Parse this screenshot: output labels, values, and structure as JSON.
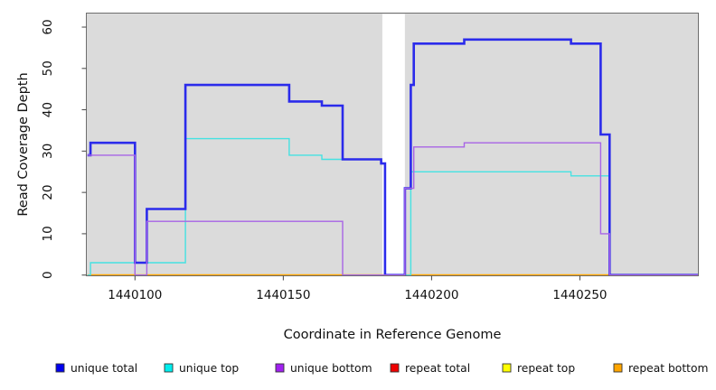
{
  "chart_data": {
    "type": "line",
    "step": "after",
    "title": "",
    "xlabel": "Coordinate in Reference Genome",
    "ylabel": "Read Coverage Depth",
    "xlim": [
      1440084,
      1440290
    ],
    "ylim": [
      0,
      63
    ],
    "grid": "off",
    "legend_position": "bottom",
    "x_ticks": [
      "1440100",
      "1440150",
      "1440200",
      "1440250"
    ],
    "x_tick_values": [
      1440100,
      1440150,
      1440200,
      1440250
    ],
    "y_ticks": [
      "0",
      "10",
      "20",
      "30",
      "40",
      "50",
      "60"
    ],
    "y_tick_values": [
      0,
      10,
      20,
      30,
      40,
      50,
      60
    ],
    "background": {
      "figure": "#FFFFFF",
      "plot": "#DBDBDB",
      "gap_region": {
        "from": 1440183.4,
        "to": 1440191.0,
        "color": "#FFFFFF"
      }
    },
    "series": [
      {
        "name": "unique total",
        "line_color": "#2B2BEB",
        "legend_color": "#0000EE",
        "line_width": 2.6,
        "end_x": 1440290,
        "steps": [
          [
            1440084,
            29
          ],
          [
            1440085,
            32
          ],
          [
            1440100,
            3
          ],
          [
            1440104,
            16
          ],
          [
            1440117,
            46
          ],
          [
            1440152,
            42
          ],
          [
            1440163,
            41
          ],
          [
            1440170,
            28
          ],
          [
            1440183,
            27
          ],
          [
            1440184.3,
            0
          ],
          [
            1440191,
            21
          ],
          [
            1440193,
            46
          ],
          [
            1440194,
            56
          ],
          [
            1440211,
            57
          ],
          [
            1440247,
            56
          ],
          [
            1440257,
            34
          ],
          [
            1440260,
            0
          ]
        ]
      },
      {
        "name": "unique top",
        "line_color": "#45E2E2",
        "legend_color": "#00EEEE",
        "line_width": 1.4,
        "end_x": 1440290,
        "steps": [
          [
            1440084,
            0
          ],
          [
            1440085,
            3
          ],
          [
            1440117,
            33
          ],
          [
            1440152,
            29
          ],
          [
            1440163,
            28
          ],
          [
            1440183,
            27
          ],
          [
            1440184.3,
            0
          ],
          [
            1440193,
            25
          ],
          [
            1440247,
            24
          ],
          [
            1440260,
            0
          ]
        ]
      },
      {
        "name": "unique bottom",
        "line_color": "#A864E6",
        "legend_color": "#A020F0",
        "line_width": 1.4,
        "end_x": 1440290,
        "steps": [
          [
            1440084,
            29
          ],
          [
            1440100,
            0
          ],
          [
            1440104,
            13
          ],
          [
            1440170,
            0
          ],
          [
            1440191,
            21
          ],
          [
            1440194,
            31
          ],
          [
            1440211,
            32
          ],
          [
            1440257,
            10
          ],
          [
            1440260,
            0
          ]
        ]
      },
      {
        "name": "repeat total",
        "line_color": "#EE0000",
        "legend_color": "#EE0000",
        "line_width": 1.4,
        "end_x": 1440260,
        "steps": [
          [
            1440084,
            0
          ]
        ]
      },
      {
        "name": "repeat top",
        "line_color": "#F2F200",
        "legend_color": "#FFFF00",
        "line_width": 1.4,
        "end_x": 1440260,
        "steps": [
          [
            1440084,
            0
          ]
        ]
      },
      {
        "name": "repeat bottom",
        "line_color": "#FFA500",
        "legend_color": "#FFA500",
        "line_width": 1.8,
        "end_x": 1440260,
        "steps": [
          [
            1440084,
            0
          ]
        ]
      }
    ]
  }
}
